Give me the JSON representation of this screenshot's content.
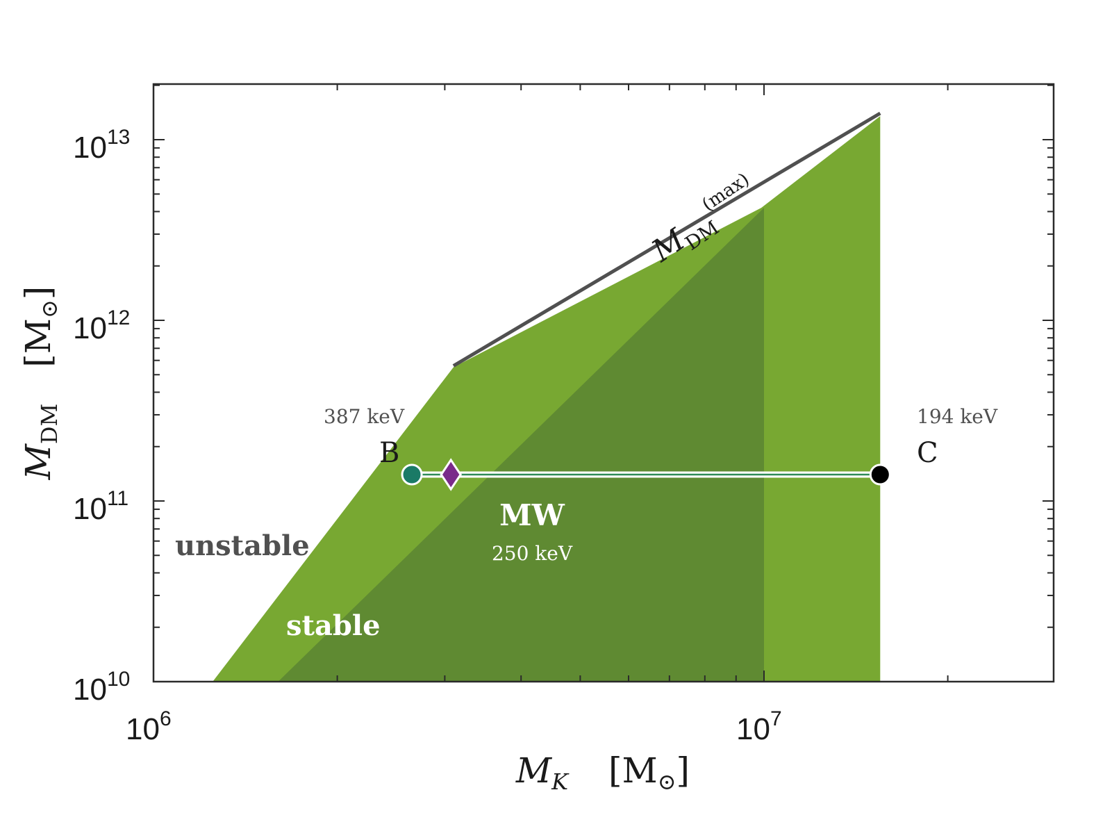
{
  "chart_data": {
    "type": "area",
    "x_scale": "log",
    "y_scale": "log",
    "xlim": [
      1000000,
      30000000
    ],
    "ylim": [
      10000000000,
      20000000000000
    ],
    "x_ticks": [
      {
        "value": 1000000,
        "base": "10",
        "exp": "6"
      },
      {
        "value": 10000000,
        "base": "10",
        "exp": "7"
      }
    ],
    "y_ticks": [
      {
        "value": 10000000000,
        "base": "10",
        "exp": "10"
      },
      {
        "value": 100000000000,
        "base": "10",
        "exp": "11"
      },
      {
        "value": 1000000000000,
        "base": "10",
        "exp": "12"
      },
      {
        "value": 10000000000000,
        "base": "10",
        "exp": "13"
      }
    ],
    "xlabel": {
      "symbol": "M",
      "sub": "K",
      "unit": "[M",
      "unit_sub": "⊙",
      "unit_close": "]"
    },
    "ylabel": {
      "symbol": "M",
      "sub": "DM",
      "unit": "[M",
      "unit_sub": "⊙",
      "unit_close": "]"
    },
    "regions": [
      {
        "label": "stable",
        "color": "#78a832",
        "boundary": [
          [
            1250000,
            10000000000
          ],
          [
            3100000,
            550000000000
          ],
          [
            9900000,
            4200000000000
          ],
          [
            15500000,
            13500000000000
          ],
          [
            15500000,
            10000000000
          ]
        ]
      },
      {
        "label": "",
        "color": "#5f8a32",
        "boundary": [
          [
            1600000,
            10000000000
          ],
          [
            10000000,
            4200000000000
          ],
          [
            10000000,
            10000000000
          ]
        ]
      }
    ],
    "max_line": {
      "color": "#505050",
      "points": [
        [
          3100000,
          560000000000
        ],
        [
          15500000,
          14000000000000
        ]
      ],
      "label": {
        "symbol": "M",
        "sub": "DM",
        "sup": "(max)"
      }
    },
    "mw_line": {
      "y": 140000000000,
      "x_range": [
        2650000,
        15500000
      ],
      "color": "#2e8b57"
    },
    "points": [
      {
        "name": "B",
        "energy": "387 keV",
        "x": 2650000,
        "y": 140000000000,
        "marker": "circle",
        "color": "#1a7a66"
      },
      {
        "name": "MW",
        "energy": "250 keV",
        "x": 3070000,
        "y": 140000000000,
        "marker": "diamond",
        "color": "#7a2a8a"
      },
      {
        "name": "C",
        "energy": "194 keV",
        "x": 15500000,
        "y": 140000000000,
        "marker": "circle",
        "color": "#000000"
      }
    ],
    "annotations": {
      "unstable": "unstable",
      "stable": "stable"
    },
    "grid": false,
    "legend": "none"
  }
}
